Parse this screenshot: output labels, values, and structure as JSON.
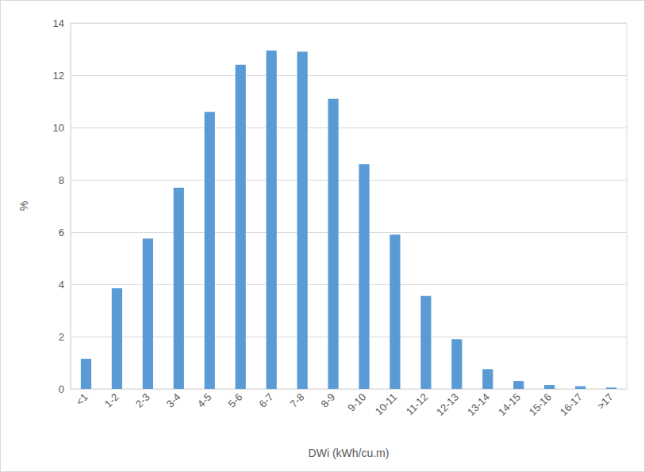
{
  "chart_data": {
    "type": "bar",
    "x_label": "DWi (kWh/cu.m)",
    "y_label": "%",
    "categories": [
      "<1",
      "1-2",
      "2-3",
      "3-4",
      "4-5",
      "5-6",
      "6-7",
      "7-8",
      "8-9",
      "9-10",
      "10-11",
      "11-12",
      "12-13",
      "13-14",
      "14-15",
      "15-16",
      "16-17",
      ">17"
    ],
    "values": [
      1.15,
      3.85,
      5.75,
      7.7,
      10.6,
      12.4,
      12.95,
      12.9,
      11.1,
      8.6,
      5.9,
      3.55,
      1.9,
      0.75,
      0.3,
      0.15,
      0.1,
      0.05
    ],
    "color": "#5b9bd5",
    "ylim": [
      0,
      14
    ],
    "yticks": [
      0,
      2,
      4,
      6,
      8,
      10,
      12,
      14
    ],
    "grid": true
  }
}
